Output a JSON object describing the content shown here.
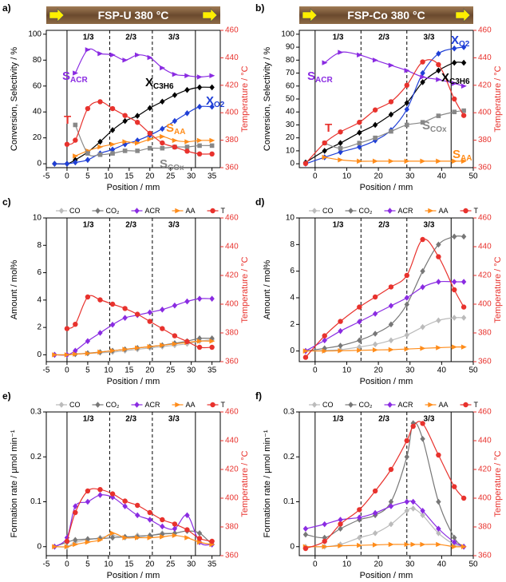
{
  "chart_data": [
    {
      "type": "line",
      "panel": "a)",
      "banner": "FSP-U 380 °C",
      "sections": [
        0,
        10.3,
        20.6,
        31
      ],
      "section_labels": [
        "1/3",
        "2/3",
        "3/3"
      ],
      "xlabel": "Position / mm",
      "ylabel": "Conversion, Selectivity / %",
      "y2label": "Temperature / °C",
      "xlim": [
        -5,
        37
      ],
      "xticks": [
        -5,
        0,
        5,
        10,
        15,
        20,
        25,
        30,
        35
      ],
      "ylim": [
        -3,
        103
      ],
      "yticks": [
        0,
        20,
        40,
        60,
        80,
        100
      ],
      "y2lim": [
        360,
        460
      ],
      "y2ticks": [
        360,
        380,
        400,
        420,
        440,
        460
      ],
      "x": [
        -3,
        0,
        2,
        5,
        8,
        11,
        14,
        17,
        20,
        23,
        26,
        29,
        32,
        35
      ],
      "series": [
        {
          "color": "#000000",
          "marker": "diamond",
          "values": [
            0,
            0,
            3,
            9,
            17,
            26,
            33,
            37,
            43,
            48,
            53,
            57,
            59,
            59
          ]
        },
        {
          "color": "#1f3fd6",
          "marker": "diamond",
          "values": [
            0,
            0,
            1,
            3,
            8,
            11,
            15,
            18,
            22,
            27,
            33,
            39,
            44,
            44
          ]
        },
        {
          "color": "#8a2be2",
          "marker": "triangle",
          "values": [
            null,
            null,
            70,
            88,
            85,
            84,
            80,
            84,
            82,
            74,
            69,
            68,
            67,
            68
          ]
        },
        {
          "color": "#ff8c1a",
          "marker": "triangle",
          "values": [
            null,
            null,
            6,
            10,
            13,
            15,
            17,
            16,
            19,
            21,
            18,
            17,
            18,
            18
          ]
        },
        {
          "color": "#888888",
          "marker": "square",
          "values": [
            null,
            null,
            30,
            8,
            7,
            8,
            10,
            10,
            12,
            12,
            13,
            13,
            14,
            14
          ]
        },
        {
          "color": "#e8322d",
          "marker": "circle",
          "axis": "y2",
          "values": [
            null,
            377,
            380,
            403,
            408,
            403,
            398,
            393,
            385,
            378,
            375,
            372,
            370,
            370
          ]
        }
      ],
      "annotations": [
        {
          "text": "S",
          "sub": "ACR",
          "color": "#8a2be2"
        },
        {
          "text": "X",
          "sub": "C3H6",
          "color": "#000000"
        },
        {
          "text": "X",
          "sub": "O2",
          "color": "#1f3fd6"
        },
        {
          "text": "S",
          "sub": "AA",
          "color": "#ff8c1a"
        },
        {
          "text": "S",
          "sub": "COx",
          "color": "#888888"
        },
        {
          "text": "T",
          "color": "#e8322d"
        }
      ]
    },
    {
      "type": "line",
      "panel": "b)",
      "banner": "FSP-Co 380 °C",
      "sections": [
        0,
        14.5,
        29,
        43
      ],
      "section_labels": [
        "1/3",
        "2/3",
        "3/3"
      ],
      "xlabel": "Position / mm",
      "ylabel": "Conversion, Selectivity / %",
      "y2label": "Temperature / °C",
      "xlim": [
        -5,
        50
      ],
      "xticks": [
        0,
        10,
        20,
        30,
        40,
        50
      ],
      "ylim": [
        -3,
        103
      ],
      "yticks": [
        0,
        10,
        20,
        30,
        40,
        50,
        60,
        70,
        80,
        90,
        100
      ],
      "y2lim": [
        360,
        460
      ],
      "y2ticks": [
        360,
        380,
        400,
        420,
        440,
        460
      ],
      "x": [
        -3,
        3,
        8,
        14,
        19,
        24,
        29,
        34,
        39,
        44,
        47
      ],
      "series": [
        {
          "color": "#000000",
          "marker": "diamond",
          "values": [
            1,
            10,
            16,
            24,
            30,
            38,
            47,
            63,
            72,
            78,
            78
          ]
        },
        {
          "color": "#1f3fd6",
          "marker": "diamond",
          "values": [
            0,
            5,
            9,
            13,
            18,
            26,
            42,
            70,
            85,
            89,
            90
          ]
        },
        {
          "color": "#8a2be2",
          "marker": "triangle",
          "values": [
            null,
            78,
            86,
            84,
            80,
            76,
            72,
            67,
            65,
            62,
            60
          ]
        },
        {
          "color": "#ff8c1a",
          "marker": "triangle",
          "values": [
            null,
            5,
            3,
            2,
            2,
            2,
            2,
            2,
            2,
            2,
            2
          ]
        },
        {
          "color": "#888888",
          "marker": "square",
          "values": [
            null,
            16,
            12,
            16,
            20,
            25,
            30,
            32,
            37,
            40,
            41
          ]
        },
        {
          "color": "#e8322d",
          "marker": "circle",
          "axis": "y2",
          "values": [
            363,
            378,
            386,
            393,
            402,
            408,
            420,
            437,
            435,
            410,
            398
          ]
        }
      ],
      "annotations": [
        {
          "text": "S",
          "sub": "ACR",
          "color": "#8a2be2"
        },
        {
          "text": "X",
          "sub": "O2",
          "color": "#1f3fd6"
        },
        {
          "text": "X",
          "sub": "C3H6",
          "color": "#000000"
        },
        {
          "text": "T",
          "color": "#e8322d"
        },
        {
          "text": "S",
          "sub": "COx",
          "color": "#888888"
        },
        {
          "text": "S",
          "sub": "AA",
          "color": "#ff8c1a"
        }
      ]
    },
    {
      "type": "line",
      "panel": "c)",
      "sections": [
        0,
        10.3,
        20.6,
        31
      ],
      "section_labels": [
        "1/3",
        "2/3",
        "3/3"
      ],
      "legend": "top",
      "xlabel": "Position / mm",
      "ylabel": "Amount / mol%",
      "y2label": "Temperature / °C",
      "xlim": [
        -5,
        37
      ],
      "xticks": [
        -5,
        0,
        5,
        10,
        15,
        20,
        25,
        30,
        35
      ],
      "ylim": [
        -0.5,
        10
      ],
      "yticks": [
        0,
        2,
        4,
        6,
        8,
        10
      ],
      "y2lim": [
        360,
        460
      ],
      "y2ticks": [
        360,
        380,
        400,
        420,
        440,
        460
      ],
      "x": [
        -3,
        0,
        2,
        5,
        8,
        11,
        14,
        17,
        20,
        23,
        26,
        29,
        32,
        35
      ],
      "series": [
        {
          "name": "CO",
          "color": "#bbbbbb",
          "marker": "diamond",
          "values": [
            0,
            0,
            0.05,
            0.1,
            0.15,
            0.2,
            0.3,
            0.4,
            0.5,
            0.6,
            0.7,
            0.8,
            1,
            1.1
          ]
        },
        {
          "name": "CO₂",
          "color": "#777777",
          "marker": "diamond",
          "values": [
            0,
            0,
            0.05,
            0.12,
            0.2,
            0.3,
            0.4,
            0.5,
            0.6,
            0.7,
            0.85,
            1,
            1.2,
            1.2
          ]
        },
        {
          "name": "ACR",
          "color": "#8a2be2",
          "marker": "diamond",
          "values": [
            0,
            0,
            0.3,
            1,
            1.6,
            2.2,
            2.7,
            2.9,
            3.1,
            3.3,
            3.6,
            3.9,
            4.1,
            4.1
          ]
        },
        {
          "name": "AA",
          "color": "#ff8c1a",
          "marker": "triangle",
          "values": [
            0,
            0,
            0.05,
            0.1,
            0.2,
            0.3,
            0.4,
            0.5,
            0.6,
            0.7,
            0.8,
            0.9,
            1,
            1
          ]
        },
        {
          "name": "T",
          "color": "#e8322d",
          "marker": "circle",
          "axis": "y2",
          "values": [
            null,
            383,
            386,
            405,
            403,
            400,
            397,
            393,
            388,
            383,
            378,
            374,
            370,
            370
          ]
        }
      ]
    },
    {
      "type": "line",
      "panel": "d)",
      "sections": [
        0,
        14.5,
        29,
        43
      ],
      "section_labels": [
        "1/3",
        "2/3",
        "3/3"
      ],
      "legend": "top",
      "xlabel": "Position / mm",
      "ylabel": "Amount / mol%",
      "y2label": "Temperature / °C",
      "xlim": [
        -5,
        50
      ],
      "xticks": [
        0,
        10,
        20,
        30,
        40,
        50
      ],
      "ylim": [
        -0.8,
        10
      ],
      "yticks": [
        0,
        2,
        4,
        6,
        8,
        10
      ],
      "y2lim": [
        360,
        460
      ],
      "y2ticks": [
        360,
        380,
        400,
        420,
        440,
        460
      ],
      "x": [
        -3,
        3,
        8,
        14,
        19,
        24,
        29,
        34,
        39,
        44,
        47
      ],
      "series": [
        {
          "name": "CO",
          "color": "#bbbbbb",
          "marker": "diamond",
          "values": [
            0,
            0.05,
            0.1,
            0.3,
            0.5,
            0.8,
            1.2,
            1.8,
            2.3,
            2.5,
            2.5
          ]
        },
        {
          "name": "CO₂",
          "color": "#777777",
          "marker": "diamond",
          "values": [
            0,
            0.2,
            0.4,
            0.8,
            1.3,
            2,
            3.5,
            6,
            8,
            8.6,
            8.6
          ]
        },
        {
          "name": "ACR",
          "color": "#8a2be2",
          "marker": "diamond",
          "values": [
            0,
            0.8,
            1.5,
            2.2,
            2.8,
            3.4,
            4,
            4.8,
            5.2,
            5.2,
            5.2
          ]
        },
        {
          "name": "AA",
          "color": "#ff8c1a",
          "marker": "triangle",
          "values": [
            0,
            0,
            0.02,
            0.05,
            0.08,
            0.1,
            0.15,
            0.2,
            0.25,
            0.3,
            0.3
          ]
        },
        {
          "name": "T",
          "color": "#e8322d",
          "marker": "circle",
          "axis": "y2",
          "values": [
            363,
            378,
            388,
            398,
            405,
            412,
            420,
            445,
            433,
            410,
            398
          ]
        }
      ]
    },
    {
      "type": "line",
      "panel": "e)",
      "sections": [
        0,
        10.3,
        20.6,
        31
      ],
      "section_labels": [
        "1/3",
        "2/3",
        "3/3"
      ],
      "legend": "top",
      "xlabel": "Position / mm",
      "ylabel": "Formation rate / µmol min⁻¹",
      "y2label": "Temperature / °C",
      "xlim": [
        -5,
        37
      ],
      "xticks": [
        -5,
        0,
        5,
        10,
        15,
        20,
        25,
        30,
        35
      ],
      "ylim": [
        -0.02,
        0.3
      ],
      "yticks": [
        0,
        0.1,
        0.2,
        0.3
      ],
      "y2lim": [
        360,
        460
      ],
      "y2ticks": [
        360,
        380,
        400,
        420,
        440,
        460
      ],
      "x": [
        -3,
        0,
        2,
        5,
        8,
        11,
        14,
        17,
        20,
        23,
        26,
        29,
        32,
        35
      ],
      "series": [
        {
          "name": "CO",
          "color": "#bbbbbb",
          "marker": "diamond",
          "values": [
            0,
            0,
            0.01,
            0.015,
            0.02,
            0.025,
            0.02,
            0.025,
            0.025,
            0.03,
            0.03,
            0.035,
            0.03,
            0.005
          ]
        },
        {
          "name": "CO₂",
          "color": "#777777",
          "marker": "diamond",
          "values": [
            0,
            0.01,
            0.015,
            0.017,
            0.018,
            0.02,
            0.022,
            0.022,
            0.025,
            0.028,
            0.03,
            0.035,
            0.03,
            0.005
          ]
        },
        {
          "name": "ACR",
          "color": "#8a2be2",
          "marker": "diamond",
          "values": [
            0,
            0.02,
            0.09,
            0.1,
            0.115,
            0.11,
            0.09,
            0.07,
            0.06,
            0.045,
            0.04,
            0.07,
            0.01,
            0.005
          ]
        },
        {
          "name": "AA",
          "color": "#ff8c1a",
          "marker": "triangle",
          "values": [
            0,
            0,
            0.005,
            0.01,
            0.015,
            0.03,
            0.02,
            0.02,
            0.02,
            0.022,
            0.025,
            0.02,
            0.01,
            0.005
          ]
        },
        {
          "name": "T",
          "color": "#e8322d",
          "marker": "circle",
          "axis": "y2",
          "values": [
            null,
            370,
            390,
            405,
            406,
            403,
            398,
            395,
            390,
            385,
            382,
            378,
            372,
            370
          ]
        }
      ]
    },
    {
      "type": "line",
      "panel": "f)",
      "sections": [
        0,
        14.5,
        29,
        43
      ],
      "section_labels": [
        "1/3",
        "2/3",
        "3/3"
      ],
      "legend": "top",
      "xlabel": "Position / mm",
      "ylabel": "Formation rate / µmol min⁻¹",
      "y2label": "Temperature / °C",
      "xlim": [
        -5,
        50
      ],
      "xticks": [
        0,
        10,
        20,
        30,
        40,
        50
      ],
      "ylim": [
        -0.02,
        0.3
      ],
      "yticks": [
        0,
        0.1,
        0.2,
        0.3
      ],
      "y2lim": [
        360,
        460
      ],
      "y2ticks": [
        360,
        380,
        400,
        420,
        440,
        460
      ],
      "x": [
        -3,
        3,
        8,
        14,
        19,
        24,
        29,
        31,
        34,
        39,
        44,
        47
      ],
      "series": [
        {
          "name": "CO",
          "color": "#bbbbbb",
          "marker": "diamond",
          "values": [
            0,
            0,
            0.005,
            0.02,
            0.03,
            0.05,
            0.08,
            0.085,
            0.07,
            0.03,
            0.005,
            0
          ]
        },
        {
          "name": "CO₂",
          "color": "#777777",
          "marker": "diamond",
          "values": [
            0.027,
            0.02,
            0.04,
            0.06,
            0.07,
            0.1,
            0.2,
            0.275,
            0.24,
            0.1,
            0.02,
            0
          ]
        },
        {
          "name": "ACR",
          "color": "#8a2be2",
          "marker": "diamond",
          "values": [
            0.04,
            0.05,
            0.06,
            0.065,
            0.075,
            0.09,
            0.1,
            0.1,
            0.08,
            0.04,
            0.01,
            0
          ]
        },
        {
          "name": "AA",
          "color": "#ff8c1a",
          "marker": "triangle",
          "values": [
            0,
            0,
            0.002,
            0.003,
            0.004,
            0.005,
            0.005,
            0.005,
            0.005,
            0.005,
            0,
            0
          ]
        },
        {
          "name": "T",
          "color": "#e8322d",
          "marker": "circle",
          "axis": "y2",
          "values": [
            365,
            370,
            382,
            392,
            405,
            420,
            440,
            450,
            452,
            430,
            408,
            400
          ]
        }
      ]
    }
  ]
}
